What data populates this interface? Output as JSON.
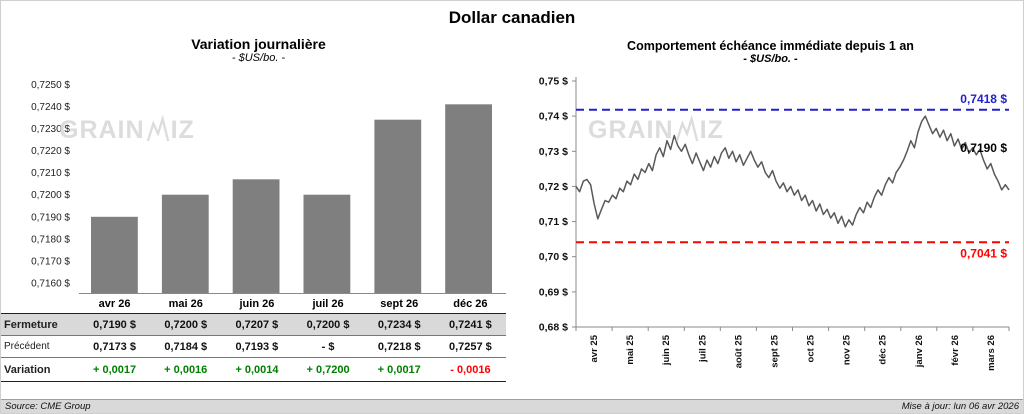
{
  "page": {
    "title": "Dollar canadien",
    "watermark": {
      "pre": "GRAIN",
      "post": "IZ"
    },
    "footer": {
      "source": "Source: CME Group",
      "updated": "Mise à jour: lun 06 avr 2026"
    }
  },
  "chart_data": [
    {
      "type": "bar",
      "title": "Variation journalière",
      "subtitle": "- $US/bo. -",
      "categories": [
        "avr 26",
        "mai 26",
        "juin 26",
        "juil 26",
        "sept 26",
        "déc 26"
      ],
      "values": [
        0.719,
        0.72,
        0.7207,
        0.72,
        0.7234,
        0.7241
      ],
      "ylim": [
        0.716,
        0.725
      ],
      "ytick_step": 0.001,
      "ytick_decimals": 4,
      "ytick_suffix": " $",
      "bar_color": "#7F7F7F",
      "grid": false
    },
    {
      "type": "line",
      "title": "Comportement échéance immédiate depuis 1 an",
      "subtitle": "- $US/bo. -",
      "x_labels": [
        "avr 25",
        "mai 25",
        "juin 25",
        "juil 25",
        "août 25",
        "sept 25",
        "oct 25",
        "nov 25",
        "déc 25",
        "janv 26",
        "févr 26",
        "mars 26"
      ],
      "values": [
        0.72,
        0.7185,
        0.7215,
        0.722,
        0.7205,
        0.715,
        0.7108,
        0.7135,
        0.716,
        0.7155,
        0.7175,
        0.7165,
        0.7195,
        0.7185,
        0.7215,
        0.7205,
        0.7235,
        0.722,
        0.725,
        0.724,
        0.7265,
        0.7245,
        0.729,
        0.731,
        0.7285,
        0.733,
        0.7305,
        0.7345,
        0.7315,
        0.73,
        0.732,
        0.729,
        0.7265,
        0.7295,
        0.727,
        0.7245,
        0.7275,
        0.7255,
        0.7285,
        0.7265,
        0.7295,
        0.731,
        0.728,
        0.73,
        0.727,
        0.729,
        0.726,
        0.728,
        0.73,
        0.7275,
        0.7255,
        0.727,
        0.724,
        0.7225,
        0.7245,
        0.7215,
        0.7195,
        0.721,
        0.7185,
        0.72,
        0.7175,
        0.719,
        0.716,
        0.7175,
        0.7145,
        0.716,
        0.713,
        0.715,
        0.712,
        0.7135,
        0.711,
        0.7125,
        0.7095,
        0.7115,
        0.7085,
        0.7105,
        0.709,
        0.712,
        0.714,
        0.7125,
        0.7155,
        0.714,
        0.717,
        0.719,
        0.7175,
        0.7205,
        0.7225,
        0.721,
        0.724,
        0.7255,
        0.7275,
        0.73,
        0.733,
        0.731,
        0.7355,
        0.7385,
        0.74,
        0.7375,
        0.735,
        0.7365,
        0.734,
        0.736,
        0.733,
        0.735,
        0.7315,
        0.7335,
        0.7305,
        0.7325,
        0.7295,
        0.731,
        0.729,
        0.7305,
        0.7275,
        0.725,
        0.7265,
        0.7235,
        0.7215,
        0.719,
        0.7205,
        0.719
      ],
      "ylim": [
        0.68,
        0.75
      ],
      "ytick_step": 0.01,
      "ytick_decimals": 2,
      "ytick_suffix": " $",
      "line_color": "#595959",
      "grid": false,
      "annotations": [
        {
          "label": "0,7418 $",
          "value": 0.7418,
          "color": "#2222CC",
          "line": "dashed",
          "placement": "above"
        },
        {
          "label": "0,7190 $",
          "value": 0.719,
          "color": "#000000",
          "line": "none",
          "placement": "floating"
        },
        {
          "label": "0,7041 $",
          "value": 0.7041,
          "color": "#FF0000",
          "line": "dashed",
          "placement": "below"
        }
      ]
    }
  ],
  "table": {
    "header": [
      "avr 26",
      "mai 26",
      "juin 26",
      "juil 26",
      "sept 26",
      "déc 26"
    ],
    "rows": [
      {
        "label": "Fermeture",
        "bg": "#D9D9D9",
        "values": [
          "0,7190 $",
          "0,7200 $",
          "0,7207 $",
          "0,7200 $",
          "0,7234 $",
          "0,7241 $"
        ]
      },
      {
        "label": "Précédent",
        "bg": "#FFFFFF",
        "values": [
          "0,7173 $",
          "0,7184 $",
          "0,7193 $",
          "- $",
          "0,7218 $",
          "0,7257 $"
        ]
      },
      {
        "label": "Variation",
        "bg": "#FFFFFF",
        "values": [
          "+ 0,0017",
          "+ 0,0016",
          "+ 0,0014",
          "+ 0,7200",
          "+ 0,0017",
          "- 0,0016"
        ],
        "colors": [
          "#008000",
          "#008000",
          "#008000",
          "#008000",
          "#008000",
          "#FF0000"
        ]
      }
    ]
  }
}
